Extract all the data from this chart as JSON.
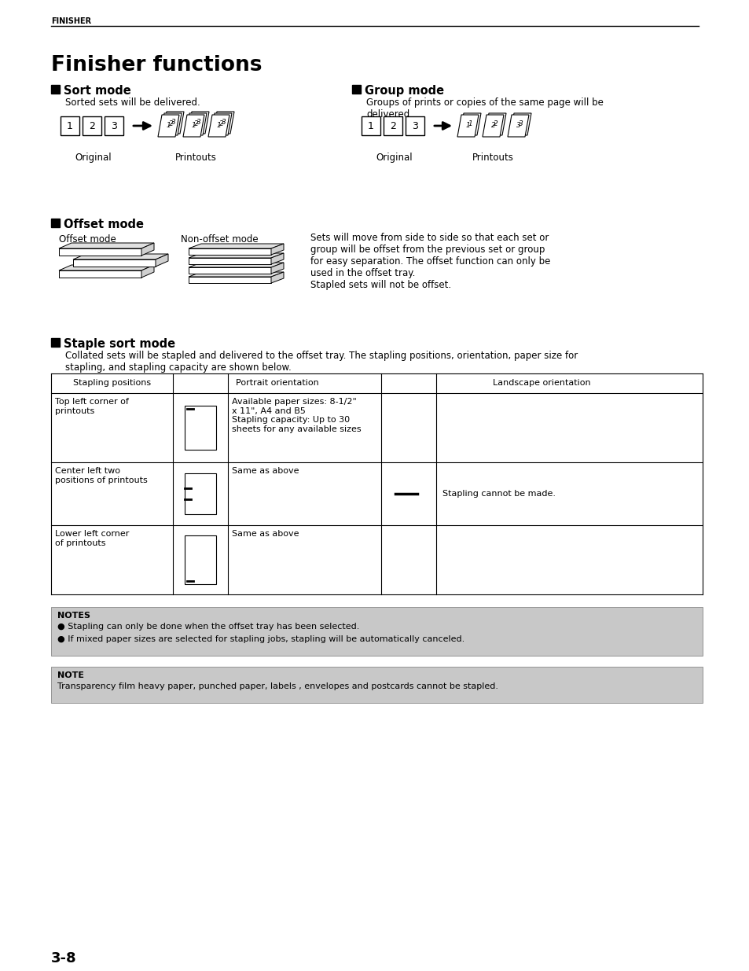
{
  "page_header": "FINISHER",
  "title": "Finisher functions",
  "bg_color": "#ffffff",
  "sort_mode_title": "Sort mode",
  "sort_mode_desc": "Sorted sets will be delivered.",
  "sort_original_label": "Original",
  "sort_printouts_label": "Printouts",
  "group_mode_title": "Group mode",
  "group_mode_desc": "Groups of prints or copies of the same page will be\ndelivered.",
  "group_original_label": "Original",
  "group_printouts_label": "Printouts",
  "offset_mode_title": "Offset mode",
  "offset_label": "Offset mode",
  "non_offset_label": "Non-offset mode",
  "offset_text": "Sets will move from side to side so that each set or\ngroup will be offset from the previous set or group\nfor easy separation. The offset function can only be\nused in the offset tray.\nStapled sets will not be offset.",
  "staple_sort_title": "Staple sort mode",
  "staple_sort_desc": "Collated sets will be stapled and delivered to the offset tray. The stapling positions, orientation, paper size for\nstapling, and stapling capacity are shown below.",
  "table_header1": "Stapling positions",
  "table_header2": "Portrait orientation",
  "table_header3": "Landscape orientation",
  "row1_col1": "Top left corner of\nprintouts",
  "row1_col3": "Available paper sizes: 8-1/2\"\nx 11\", A4 and B5\nStapling capacity: Up to 30\nsheets for any available sizes",
  "row2_col1": "Center left two\npositions of printouts",
  "row2_col3": "Same as above",
  "row2_landscape": "Stapling cannot be made.",
  "row3_col1": "Lower left corner\nof printouts",
  "row3_col3": "Same as above",
  "notes_title": "NOTES",
  "note1": "● Stapling can only be done when the offset tray has been selected.",
  "note2": "● If mixed paper sizes are selected for stapling jobs, stapling will be automatically canceled.",
  "note_title": "NOTE",
  "note_text": "Transparency film heavy paper, punched paper, labels , envelopes and postcards cannot be stapled.",
  "notes_bg": "#c8c8c8",
  "page_number": "3-8",
  "ml": 65,
  "mr": 889
}
